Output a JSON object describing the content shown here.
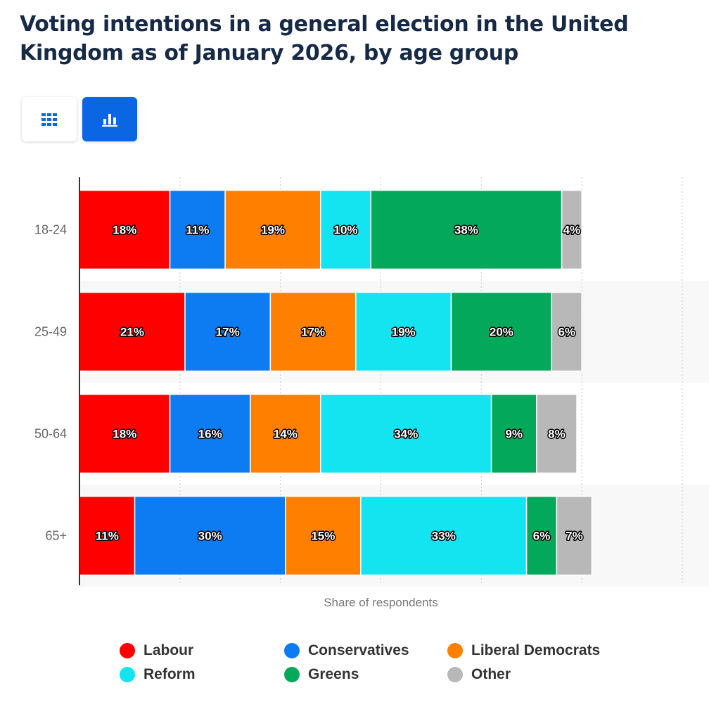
{
  "title": "Voting intentions in a general election in the United Kingdom as of January 2026, by age group",
  "toolbar": {
    "table_view_icon": "grid-icon",
    "chart_view_icon": "bar-chart-icon",
    "active_view": "chart"
  },
  "chart_data": {
    "type": "bar",
    "orientation": "horizontal",
    "stacked": true,
    "categories": [
      "18-24",
      "25-49",
      "50-64",
      "65+"
    ],
    "series": [
      {
        "name": "Labour",
        "color": "#ff0000",
        "values": [
          18,
          21,
          18,
          11
        ]
      },
      {
        "name": "Conservatives",
        "color": "#0d7cf2",
        "values": [
          11,
          17,
          16,
          30
        ]
      },
      {
        "name": "Liberal Democrats",
        "color": "#ff8000",
        "values": [
          19,
          17,
          14,
          15
        ]
      },
      {
        "name": "Reform",
        "color": "#14e3f0",
        "values": [
          10,
          19,
          34,
          33
        ]
      },
      {
        "name": "Greens",
        "color": "#04a85a",
        "values": [
          38,
          20,
          9,
          6
        ]
      },
      {
        "name": "Other",
        "color": "#b8b8b8",
        "values": [
          4,
          6,
          8,
          7
        ]
      }
    ],
    "value_suffix": "%",
    "xlabel": "Share of respondents",
    "ylabel": "",
    "xlim": [
      0,
      120
    ],
    "grid": "vertical dotted",
    "legend_position": "bottom"
  }
}
